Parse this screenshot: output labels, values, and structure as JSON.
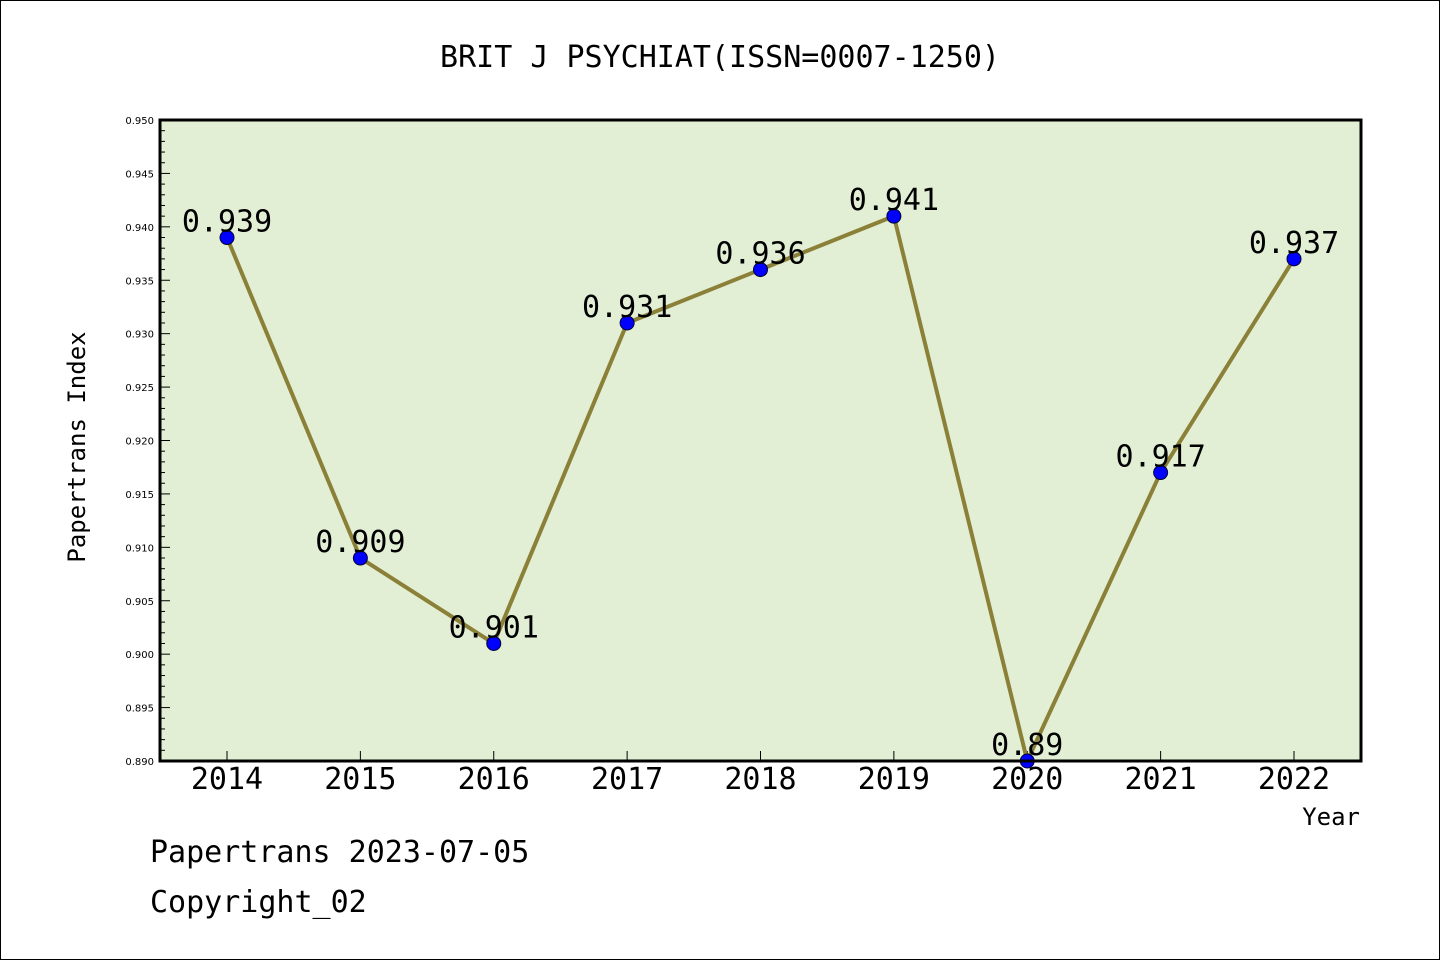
{
  "chart_data": {
    "type": "line",
    "title": "BRIT J PSYCHIAT(ISSN=0007-1250)",
    "xlabel": "Year",
    "ylabel": "Papertrans Index",
    "categories": [
      "2014",
      "2015",
      "2016",
      "2017",
      "2018",
      "2019",
      "2020",
      "2021",
      "2022"
    ],
    "values": [
      0.939,
      0.909,
      0.901,
      0.931,
      0.936,
      0.941,
      0.89,
      0.917,
      0.937
    ],
    "data_labels": [
      "0.939",
      "0.909",
      "0.901",
      "0.931",
      "0.936",
      "0.941",
      "0.89",
      "0.917",
      "0.937"
    ],
    "ylim": [
      0.89,
      0.95
    ],
    "yticks": [
      "0.890",
      "0.895",
      "0.900",
      "0.905",
      "0.910",
      "0.915",
      "0.920",
      "0.925",
      "0.930",
      "0.935",
      "0.940",
      "0.945",
      "0.950"
    ],
    "grid": false,
    "colors": {
      "plot_background": "#e2efd5",
      "line": "#8b8037",
      "marker": "#0000ff"
    }
  },
  "footer": {
    "line1": "Papertrans 2023-07-05",
    "line2": "Copyright_02"
  }
}
